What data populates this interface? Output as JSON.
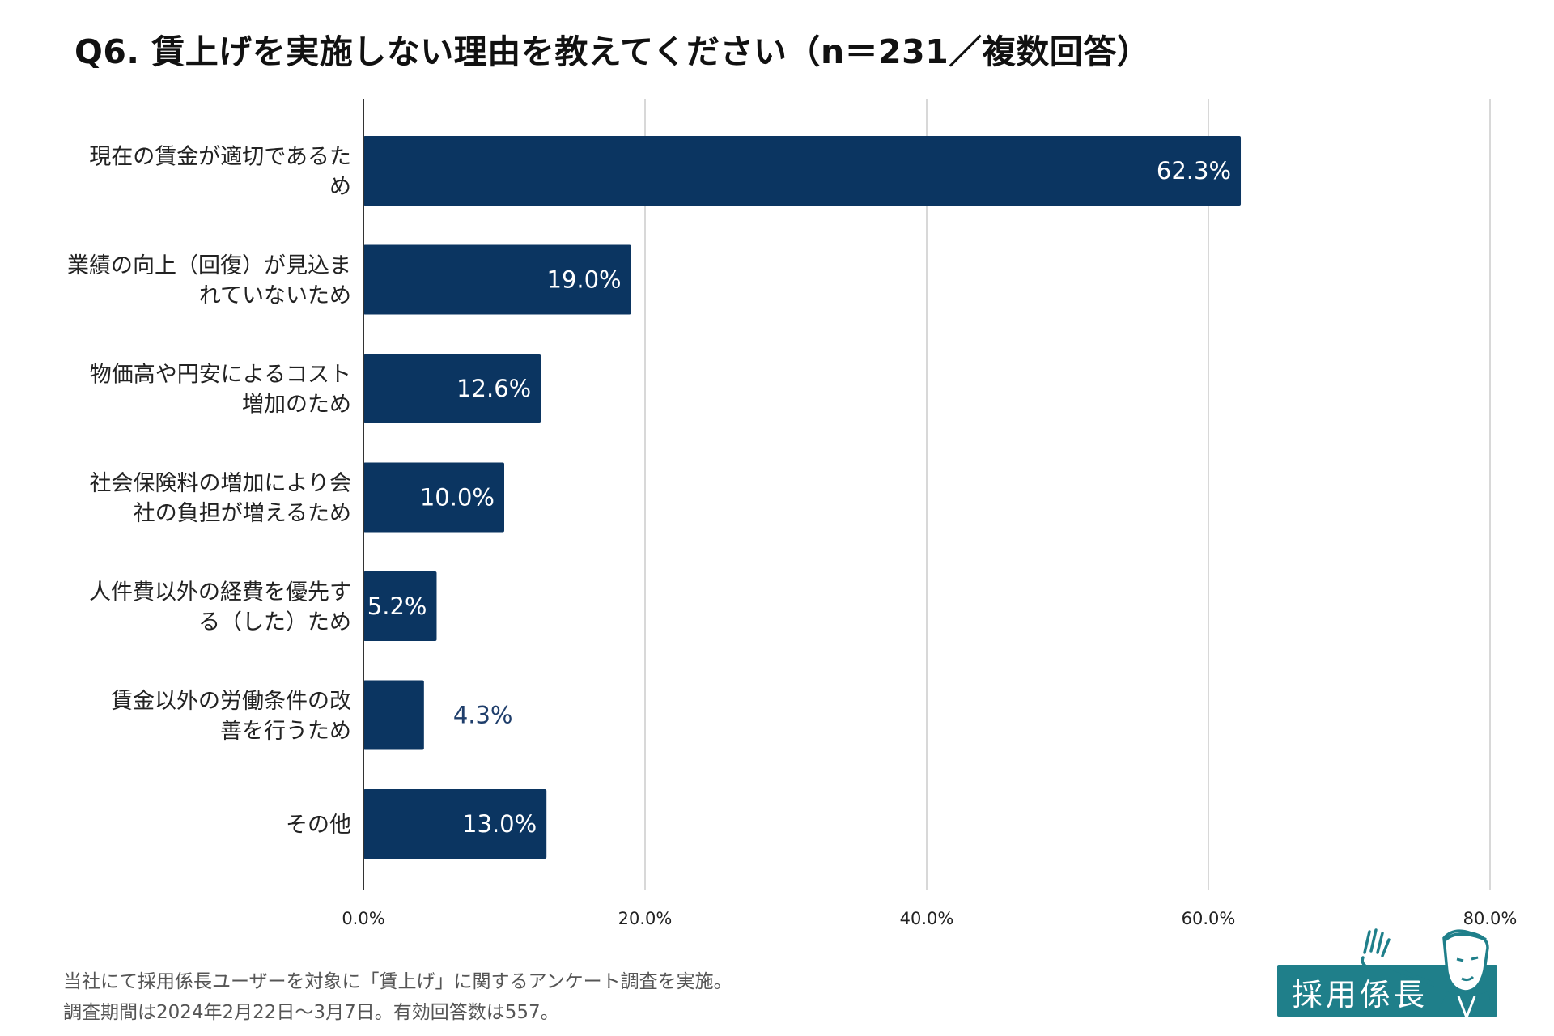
{
  "chart_data": {
    "type": "bar",
    "orientation": "horizontal",
    "title": "Q6. 賃上げを実施しない理由を教えてください（n＝231／複数回答）",
    "categories": [
      [
        "現在の賃金が適切であるた",
        "め"
      ],
      [
        "業績の向上（回復）が見込ま",
        "れていないため"
      ],
      [
        "物価高や円安によるコスト",
        "増加のため"
      ],
      [
        "社会保険料の増加により会",
        "社の負担が増えるため"
      ],
      [
        "人件費以外の経費を優先す",
        "る（した）ため"
      ],
      [
        "賃金以外の労働条件の改",
        "善を行うため"
      ],
      [
        "その他"
      ]
    ],
    "values": [
      62.3,
      19.0,
      12.6,
      10.0,
      5.2,
      4.3,
      13.0
    ],
    "value_labels": [
      "62.3%",
      "19.0%",
      "12.6%",
      "10.0%",
      "5.2%",
      "4.3%",
      "13.0%"
    ],
    "xlim": [
      0,
      80
    ],
    "xticks": [
      0,
      20,
      40,
      60,
      80
    ],
    "xtick_labels": [
      "0.0%",
      "20.0%",
      "40.0%",
      "60.0%",
      "80.0%"
    ],
    "grid": true,
    "bar_color": "#0b3561",
    "outside_label_color": "#1f3e6b",
    "grid_color": "#cccccc"
  },
  "footnotes": [
    "当社にて採用係長ユーザーを対象に「賃上げ」に関するアンケート調査を実施。",
    "調査期間は2024年2月22日〜3月7日。有効回答数は557。"
  ],
  "logo": {
    "text": "採用係長",
    "color": "#1f7f8a"
  }
}
